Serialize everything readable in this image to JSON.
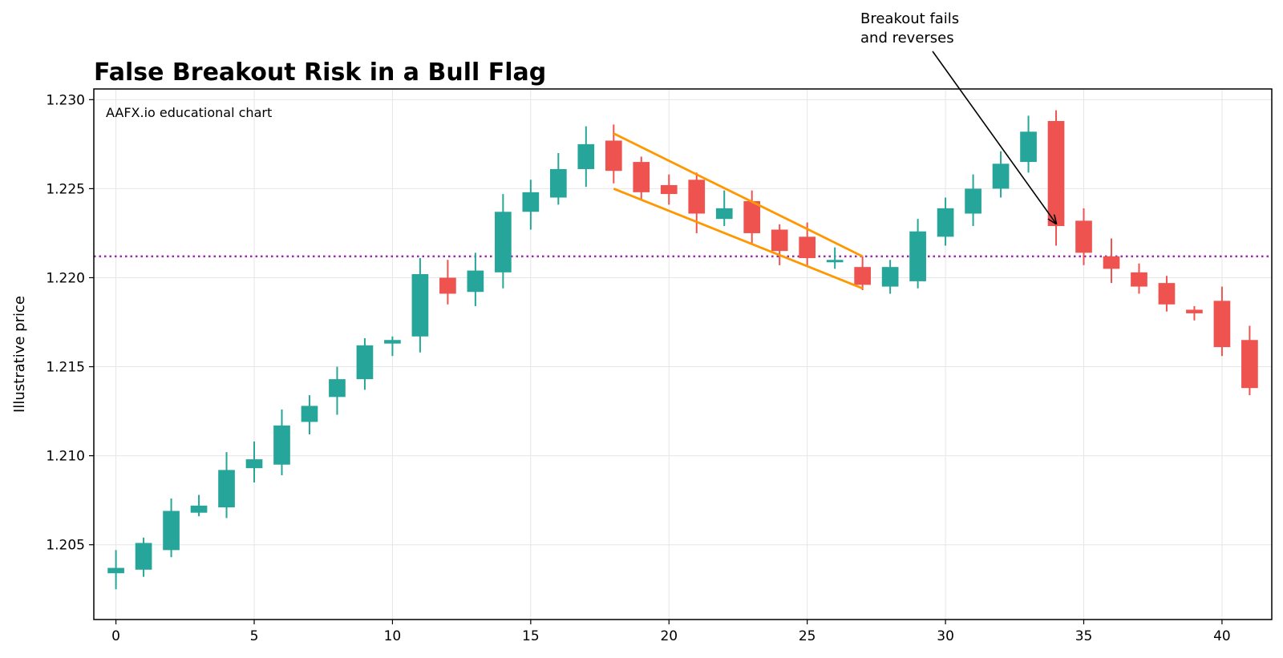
{
  "chart_data": {
    "type": "candlestick",
    "title": "False Breakout Risk in a Bull Flag",
    "watermark": "AAFX.io educational chart",
    "xlabel": "",
    "ylabel": "Illustrative price",
    "xlim": [
      -0.8,
      41.8
    ],
    "ylim": [
      1.2008,
      1.2306
    ],
    "x_ticks": [
      0,
      5,
      10,
      15,
      20,
      25,
      30,
      35,
      40
    ],
    "y_ticks": [
      1.205,
      1.21,
      1.215,
      1.22,
      1.225,
      1.23
    ],
    "y_tick_labels": [
      "1.205",
      "1.210",
      "1.215",
      "1.220",
      "1.225",
      "1.230"
    ],
    "grid": true,
    "colors": {
      "up": "#26a69a",
      "down": "#ef5350",
      "flag": "#ff9800",
      "level": "#9c27b0"
    },
    "candles": [
      {
        "x": 0,
        "open": 1.2034,
        "high": 1.2047,
        "low": 1.2025,
        "close": 1.2037
      },
      {
        "x": 1,
        "open": 1.2036,
        "high": 1.2054,
        "low": 1.2032,
        "close": 1.2051
      },
      {
        "x": 2,
        "open": 1.2047,
        "high": 1.2076,
        "low": 1.2043,
        "close": 1.2069
      },
      {
        "x": 3,
        "open": 1.2068,
        "high": 1.2078,
        "low": 1.2066,
        "close": 1.2072
      },
      {
        "x": 4,
        "open": 1.2071,
        "high": 1.2102,
        "low": 1.2065,
        "close": 1.2092
      },
      {
        "x": 5,
        "open": 1.2093,
        "high": 1.2108,
        "low": 1.2085,
        "close": 1.2098
      },
      {
        "x": 6,
        "open": 1.2095,
        "high": 1.2126,
        "low": 1.2089,
        "close": 1.2117
      },
      {
        "x": 7,
        "open": 1.2119,
        "high": 1.2134,
        "low": 1.2112,
        "close": 1.2128
      },
      {
        "x": 8,
        "open": 1.2133,
        "high": 1.215,
        "low": 1.2123,
        "close": 1.2143
      },
      {
        "x": 9,
        "open": 1.2143,
        "high": 1.2166,
        "low": 1.2137,
        "close": 1.2162
      },
      {
        "x": 10,
        "open": 1.2163,
        "high": 1.2167,
        "low": 1.2156,
        "close": 1.2165
      },
      {
        "x": 11,
        "open": 1.2167,
        "high": 1.2211,
        "low": 1.2158,
        "close": 1.2202
      },
      {
        "x": 12,
        "open": 1.22,
        "high": 1.221,
        "low": 1.2185,
        "close": 1.2191
      },
      {
        "x": 13,
        "open": 1.2192,
        "high": 1.2214,
        "low": 1.2184,
        "close": 1.2204
      },
      {
        "x": 14,
        "open": 1.2203,
        "high": 1.2247,
        "low": 1.2194,
        "close": 1.2237
      },
      {
        "x": 15,
        "open": 1.2237,
        "high": 1.2255,
        "low": 1.2227,
        "close": 1.2248
      },
      {
        "x": 16,
        "open": 1.2245,
        "high": 1.227,
        "low": 1.2241,
        "close": 1.2261
      },
      {
        "x": 17,
        "open": 1.2261,
        "high": 1.2285,
        "low": 1.2251,
        "close": 1.2275
      },
      {
        "x": 18,
        "open": 1.2277,
        "high": 1.2286,
        "low": 1.2253,
        "close": 1.226
      },
      {
        "x": 19,
        "open": 1.2265,
        "high": 1.2268,
        "low": 1.2244,
        "close": 1.2248
      },
      {
        "x": 20,
        "open": 1.2252,
        "high": 1.2258,
        "low": 1.2241,
        "close": 1.2247
      },
      {
        "x": 21,
        "open": 1.2255,
        "high": 1.2259,
        "low": 1.2225,
        "close": 1.2236
      },
      {
        "x": 22,
        "open": 1.2233,
        "high": 1.2249,
        "low": 1.2229,
        "close": 1.2239
      },
      {
        "x": 23,
        "open": 1.2243,
        "high": 1.2249,
        "low": 1.2219,
        "close": 1.2225
      },
      {
        "x": 24,
        "open": 1.2227,
        "high": 1.223,
        "low": 1.2207,
        "close": 1.2215
      },
      {
        "x": 25,
        "open": 1.2223,
        "high": 1.2231,
        "low": 1.2207,
        "close": 1.2211
      },
      {
        "x": 26,
        "open": 1.2209,
        "high": 1.2217,
        "low": 1.2205,
        "close": 1.221
      },
      {
        "x": 27,
        "open": 1.2206,
        "high": 1.2212,
        "low": 1.2193,
        "close": 1.2196
      },
      {
        "x": 28,
        "open": 1.2195,
        "high": 1.221,
        "low": 1.2191,
        "close": 1.2206
      },
      {
        "x": 29,
        "open": 1.2198,
        "high": 1.2233,
        "low": 1.2194,
        "close": 1.2226
      },
      {
        "x": 30,
        "open": 1.2223,
        "high": 1.2245,
        "low": 1.2218,
        "close": 1.2239
      },
      {
        "x": 31,
        "open": 1.2236,
        "high": 1.2258,
        "low": 1.2229,
        "close": 1.225
      },
      {
        "x": 32,
        "open": 1.225,
        "high": 1.2271,
        "low": 1.2245,
        "close": 1.2264
      },
      {
        "x": 33,
        "open": 1.2265,
        "high": 1.2291,
        "low": 1.2259,
        "close": 1.2282
      },
      {
        "x": 34,
        "open": 1.2288,
        "high": 1.2294,
        "low": 1.2218,
        "close": 1.2229
      },
      {
        "x": 35,
        "open": 1.2232,
        "high": 1.2239,
        "low": 1.2207,
        "close": 1.2214
      },
      {
        "x": 36,
        "open": 1.2212,
        "high": 1.2222,
        "low": 1.2197,
        "close": 1.2205
      },
      {
        "x": 37,
        "open": 1.2203,
        "high": 1.2208,
        "low": 1.2191,
        "close": 1.2195
      },
      {
        "x": 38,
        "open": 1.2197,
        "high": 1.2201,
        "low": 1.2181,
        "close": 1.2185
      },
      {
        "x": 39,
        "open": 1.2182,
        "high": 1.2184,
        "low": 1.2176,
        "close": 1.218
      },
      {
        "x": 40,
        "open": 1.2187,
        "high": 1.2195,
        "low": 1.2156,
        "close": 1.2161
      },
      {
        "x": 41,
        "open": 1.2165,
        "high": 1.2173,
        "low": 1.2134,
        "close": 1.2138
      }
    ],
    "flag_lines": [
      {
        "x1": 18,
        "y1": 1.2281,
        "x2": 27,
        "y2": 1.2212
      },
      {
        "x1": 18,
        "y1": 1.225,
        "x2": 27,
        "y2": 1.2194
      }
    ],
    "breakout_level": 1.2212,
    "annotation": {
      "lines": [
        "Breakout fails",
        "and reverses"
      ],
      "point": {
        "x": 34,
        "y": 1.2229
      }
    }
  }
}
